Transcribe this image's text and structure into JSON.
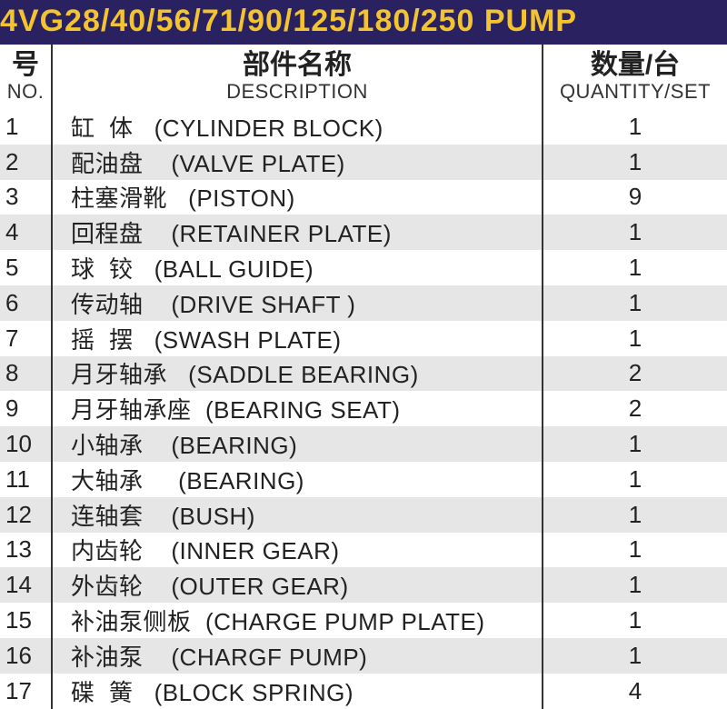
{
  "header": {
    "title": "4VG28/40/56/71/90/125/180/250   PUMP",
    "title_color": "#f4c430",
    "title_bg": "#2a2260"
  },
  "columns": {
    "no_cn": "号",
    "no_en": "NO.",
    "desc_cn": "部件名称",
    "desc_en": "DESCRIPTION",
    "qty_cn": "数量/台",
    "qty_en": "QUANTITY/SET"
  },
  "rows": [
    {
      "no": "1",
      "cn": "缸  体",
      "en": "(CYLINDER BLOCK)",
      "qty": "1"
    },
    {
      "no": "2",
      "cn": "配油盘",
      "en": "(VALVE PLATE)",
      "qty": "1"
    },
    {
      "no": "3",
      "cn": "柱塞滑靴",
      "en": "(PISTON)",
      "qty": "9"
    },
    {
      "no": "4",
      "cn": "回程盘",
      "en": "(RETAINER PLATE)",
      "qty": "1"
    },
    {
      "no": "5",
      "cn": "球  铰",
      "en": "(BALL GUIDE)",
      "qty": "1"
    },
    {
      "no": "6",
      "cn": "传动轴",
      "en": "(DRIVE SHAFT )",
      "qty": "1"
    },
    {
      "no": "7",
      "cn": "摇  摆",
      "en": "(SWASH PLATE)",
      "qty": "1"
    },
    {
      "no": "8",
      "cn": "月牙轴承",
      "en": "(SADDLE BEARING)",
      "qty": "2"
    },
    {
      "no": "9",
      "cn": "月牙轴承座",
      "en": "(BEARING SEAT)",
      "qty": "2"
    },
    {
      "no": "10",
      "cn": "小轴承",
      "en": "(BEARING)",
      "qty": "1"
    },
    {
      "no": "11",
      "cn": "大轴承",
      "en": " (BEARING)",
      "qty": "1"
    },
    {
      "no": "12",
      "cn": "连轴套",
      "en": "(BUSH)",
      "qty": "1"
    },
    {
      "no": "13",
      "cn": "内齿轮",
      "en": "(INNER GEAR)",
      "qty": "1"
    },
    {
      "no": "14",
      "cn": "外齿轮",
      "en": "(OUTER GEAR)",
      "qty": "1"
    },
    {
      "no": "15",
      "cn": "补油泵侧板",
      "en": "(CHARGE PUMP PLATE)",
      "qty": "1"
    },
    {
      "no": "16",
      "cn": "补油泵",
      "en": "(CHARGF PUMP)",
      "qty": "1"
    },
    {
      "no": "17",
      "cn": "碟  簧",
      "en": "(BLOCK SPRING)",
      "qty": "4"
    }
  ],
  "style": {
    "row_bg_odd": "#ffffff",
    "row_bg_even": "#e6e6e6",
    "border_color": "#333333",
    "text_color": "#222222",
    "font_size_row": 26,
    "font_size_hdr_cn": 30,
    "font_size_hdr_en": 22
  }
}
